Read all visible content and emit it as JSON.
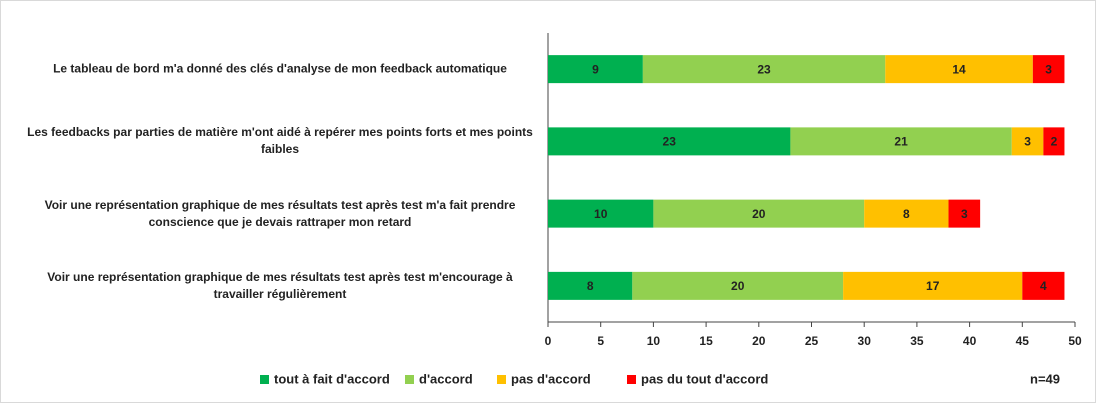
{
  "chart_data": {
    "type": "stacked-barh",
    "categories": [
      "Le tableau de bord m'a donné des clés d'analyse de mon feedback automatique",
      "Les feedbacks par parties de matière m'ont aidé à repérer mes points forts et mes points faibles",
      "Voir une représentation graphique de mes résultats test après test m'a fait prendre conscience que je devais rattraper mon retard",
      "Voir une représentation graphique de mes résultats test après test m'encourage à travailler régulièrement"
    ],
    "series": [
      {
        "name": "tout à fait d'accord",
        "color": "#00b050",
        "values": [
          9,
          23,
          10,
          8
        ]
      },
      {
        "name": "d'accord",
        "color": "#92d050",
        "values": [
          23,
          21,
          20,
          20
        ]
      },
      {
        "name": "pas d'accord",
        "color": "#ffc000",
        "values": [
          14,
          3,
          8,
          17
        ]
      },
      {
        "name": "pas du tout d'accord",
        "color": "#ff0000",
        "values": [
          3,
          2,
          3,
          4
        ]
      }
    ],
    "xlim": [
      0,
      50
    ],
    "xticks": [
      0,
      5,
      10,
      15,
      20,
      25,
      30,
      35,
      40,
      45,
      50
    ],
    "annotation": "n=49",
    "legend": "bottom"
  }
}
